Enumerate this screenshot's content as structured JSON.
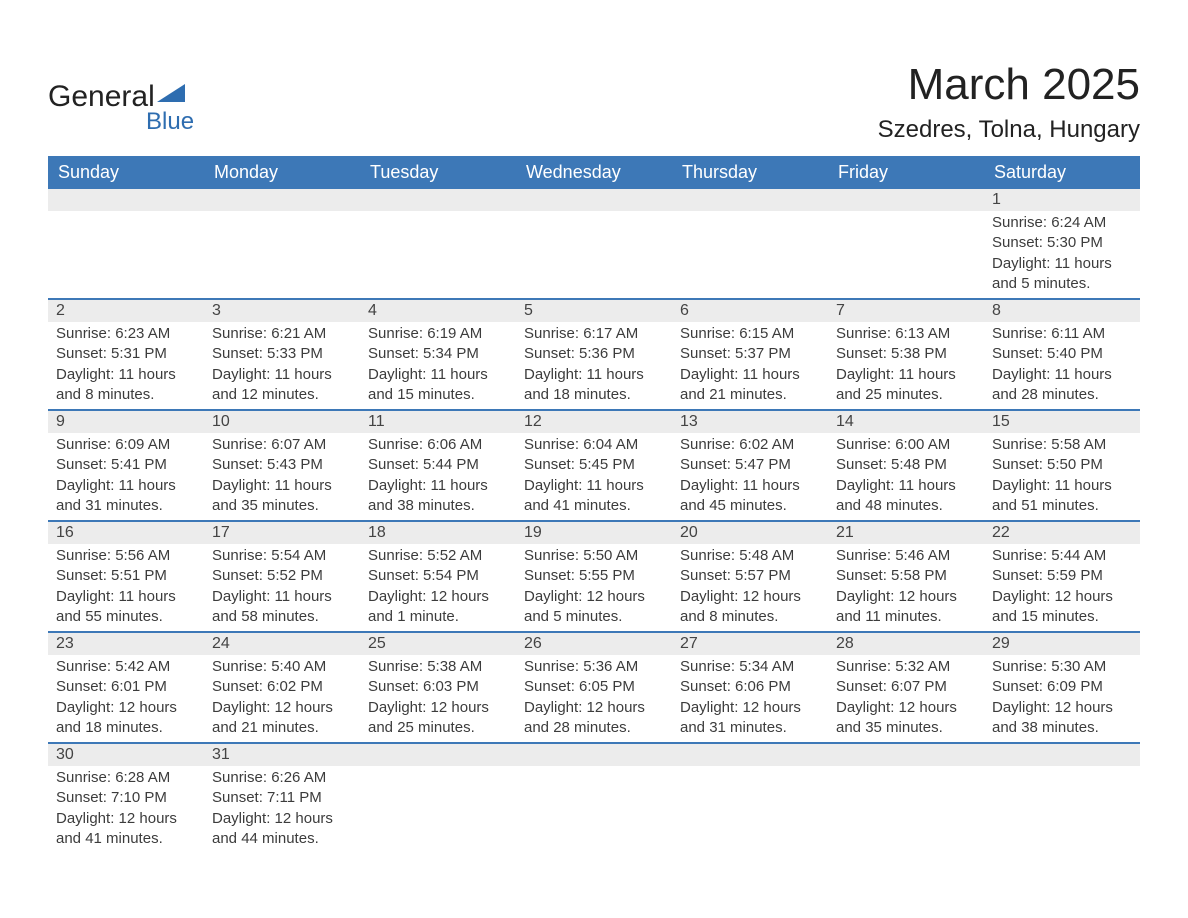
{
  "logo": {
    "word1": "General",
    "word2": "Blue",
    "triangle_color": "#2e6db0"
  },
  "title": "March 2025",
  "location": "Szedres, Tolna, Hungary",
  "colors": {
    "header_bg": "#3d78b7",
    "header_text": "#ffffff",
    "row_divider": "#3d78b7",
    "daynum_bg": "#ececec",
    "body_text": "#3c3c3c",
    "page_bg": "#ffffff"
  },
  "typography": {
    "title_fontsize": 44,
    "location_fontsize": 24,
    "header_fontsize": 18,
    "cell_fontsize": 15
  },
  "calendar": {
    "type": "table",
    "columns": [
      "Sunday",
      "Monday",
      "Tuesday",
      "Wednesday",
      "Thursday",
      "Friday",
      "Saturday"
    ],
    "weeks": [
      [
        null,
        null,
        null,
        null,
        null,
        null,
        {
          "n": "1",
          "sunrise": "6:24 AM",
          "sunset": "5:30 PM",
          "daylight": "11 hours and 5 minutes."
        }
      ],
      [
        {
          "n": "2",
          "sunrise": "6:23 AM",
          "sunset": "5:31 PM",
          "daylight": "11 hours and 8 minutes."
        },
        {
          "n": "3",
          "sunrise": "6:21 AM",
          "sunset": "5:33 PM",
          "daylight": "11 hours and 12 minutes."
        },
        {
          "n": "4",
          "sunrise": "6:19 AM",
          "sunset": "5:34 PM",
          "daylight": "11 hours and 15 minutes."
        },
        {
          "n": "5",
          "sunrise": "6:17 AM",
          "sunset": "5:36 PM",
          "daylight": "11 hours and 18 minutes."
        },
        {
          "n": "6",
          "sunrise": "6:15 AM",
          "sunset": "5:37 PM",
          "daylight": "11 hours and 21 minutes."
        },
        {
          "n": "7",
          "sunrise": "6:13 AM",
          "sunset": "5:38 PM",
          "daylight": "11 hours and 25 minutes."
        },
        {
          "n": "8",
          "sunrise": "6:11 AM",
          "sunset": "5:40 PM",
          "daylight": "11 hours and 28 minutes."
        }
      ],
      [
        {
          "n": "9",
          "sunrise": "6:09 AM",
          "sunset": "5:41 PM",
          "daylight": "11 hours and 31 minutes."
        },
        {
          "n": "10",
          "sunrise": "6:07 AM",
          "sunset": "5:43 PM",
          "daylight": "11 hours and 35 minutes."
        },
        {
          "n": "11",
          "sunrise": "6:06 AM",
          "sunset": "5:44 PM",
          "daylight": "11 hours and 38 minutes."
        },
        {
          "n": "12",
          "sunrise": "6:04 AM",
          "sunset": "5:45 PM",
          "daylight": "11 hours and 41 minutes."
        },
        {
          "n": "13",
          "sunrise": "6:02 AM",
          "sunset": "5:47 PM",
          "daylight": "11 hours and 45 minutes."
        },
        {
          "n": "14",
          "sunrise": "6:00 AM",
          "sunset": "5:48 PM",
          "daylight": "11 hours and 48 minutes."
        },
        {
          "n": "15",
          "sunrise": "5:58 AM",
          "sunset": "5:50 PM",
          "daylight": "11 hours and 51 minutes."
        }
      ],
      [
        {
          "n": "16",
          "sunrise": "5:56 AM",
          "sunset": "5:51 PM",
          "daylight": "11 hours and 55 minutes."
        },
        {
          "n": "17",
          "sunrise": "5:54 AM",
          "sunset": "5:52 PM",
          "daylight": "11 hours and 58 minutes."
        },
        {
          "n": "18",
          "sunrise": "5:52 AM",
          "sunset": "5:54 PM",
          "daylight": "12 hours and 1 minute."
        },
        {
          "n": "19",
          "sunrise": "5:50 AM",
          "sunset": "5:55 PM",
          "daylight": "12 hours and 5 minutes."
        },
        {
          "n": "20",
          "sunrise": "5:48 AM",
          "sunset": "5:57 PM",
          "daylight": "12 hours and 8 minutes."
        },
        {
          "n": "21",
          "sunrise": "5:46 AM",
          "sunset": "5:58 PM",
          "daylight": "12 hours and 11 minutes."
        },
        {
          "n": "22",
          "sunrise": "5:44 AM",
          "sunset": "5:59 PM",
          "daylight": "12 hours and 15 minutes."
        }
      ],
      [
        {
          "n": "23",
          "sunrise": "5:42 AM",
          "sunset": "6:01 PM",
          "daylight": "12 hours and 18 minutes."
        },
        {
          "n": "24",
          "sunrise": "5:40 AM",
          "sunset": "6:02 PM",
          "daylight": "12 hours and 21 minutes."
        },
        {
          "n": "25",
          "sunrise": "5:38 AM",
          "sunset": "6:03 PM",
          "daylight": "12 hours and 25 minutes."
        },
        {
          "n": "26",
          "sunrise": "5:36 AM",
          "sunset": "6:05 PM",
          "daylight": "12 hours and 28 minutes."
        },
        {
          "n": "27",
          "sunrise": "5:34 AM",
          "sunset": "6:06 PM",
          "daylight": "12 hours and 31 minutes."
        },
        {
          "n": "28",
          "sunrise": "5:32 AM",
          "sunset": "6:07 PM",
          "daylight": "12 hours and 35 minutes."
        },
        {
          "n": "29",
          "sunrise": "5:30 AM",
          "sunset": "6:09 PM",
          "daylight": "12 hours and 38 minutes."
        }
      ],
      [
        {
          "n": "30",
          "sunrise": "6:28 AM",
          "sunset": "7:10 PM",
          "daylight": "12 hours and 41 minutes."
        },
        {
          "n": "31",
          "sunrise": "6:26 AM",
          "sunset": "7:11 PM",
          "daylight": "12 hours and 44 minutes."
        },
        null,
        null,
        null,
        null,
        null
      ]
    ],
    "labels": {
      "sunrise": "Sunrise: ",
      "sunset": "Sunset: ",
      "daylight": "Daylight: "
    }
  }
}
